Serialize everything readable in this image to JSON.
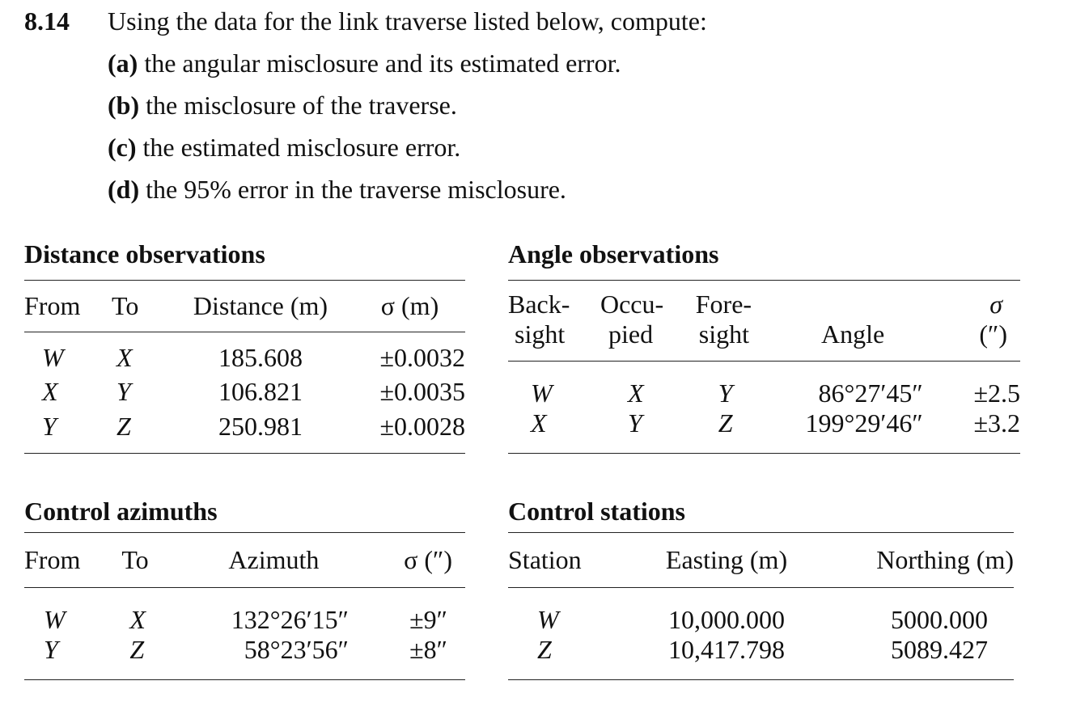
{
  "problem": {
    "number": "8.14",
    "stem": "Using the data for the link traverse listed below, compute:",
    "parts": [
      {
        "label": "(a)",
        "text": "the angular misclosure and its estimated error."
      },
      {
        "label": "(b)",
        "text": "the misclosure of the traverse."
      },
      {
        "label": "(c)",
        "text": "the estimated misclosure error."
      },
      {
        "label": "(d)",
        "text": "the 95% error in the traverse misclosure."
      }
    ]
  },
  "distance_observations": {
    "title": "Distance observations",
    "headers": [
      "From",
      "To",
      "Distance (m)",
      "σ (m)"
    ],
    "rows": [
      [
        "W",
        "X",
        "185.608",
        "±0.0032"
      ],
      [
        "X",
        "Y",
        "106.821",
        "±0.0035"
      ],
      [
        "Y",
        "Z",
        "250.981",
        "±0.0028"
      ]
    ]
  },
  "angle_observations": {
    "title": "Angle observations",
    "headers_line1": [
      "Back-",
      "Occu-",
      "Fore-",
      "",
      "σ"
    ],
    "headers_line2": [
      "sight",
      "pied",
      "sight",
      "Angle",
      "(″)"
    ],
    "rows": [
      [
        "W",
        "X",
        "Y",
        "86°27′45″",
        "±2.5"
      ],
      [
        "X",
        "Y",
        "Z",
        "199°29′46″",
        "±3.2"
      ]
    ]
  },
  "control_azimuths": {
    "title": "Control azimuths",
    "headers": [
      "From",
      "To",
      "Azimuth",
      "σ (″)"
    ],
    "rows": [
      [
        "W",
        "X",
        "132°26′15″",
        "±9″"
      ],
      [
        "Y",
        "Z",
        "58°23′56″",
        "±8″"
      ]
    ]
  },
  "control_stations": {
    "title": "Control stations",
    "headers": [
      "Station",
      "Easting (m)",
      "Northing (m)"
    ],
    "rows": [
      [
        "W",
        "10,000.000",
        "5000.000"
      ],
      [
        "Z",
        "10,417.798",
        "5089.427"
      ]
    ]
  }
}
